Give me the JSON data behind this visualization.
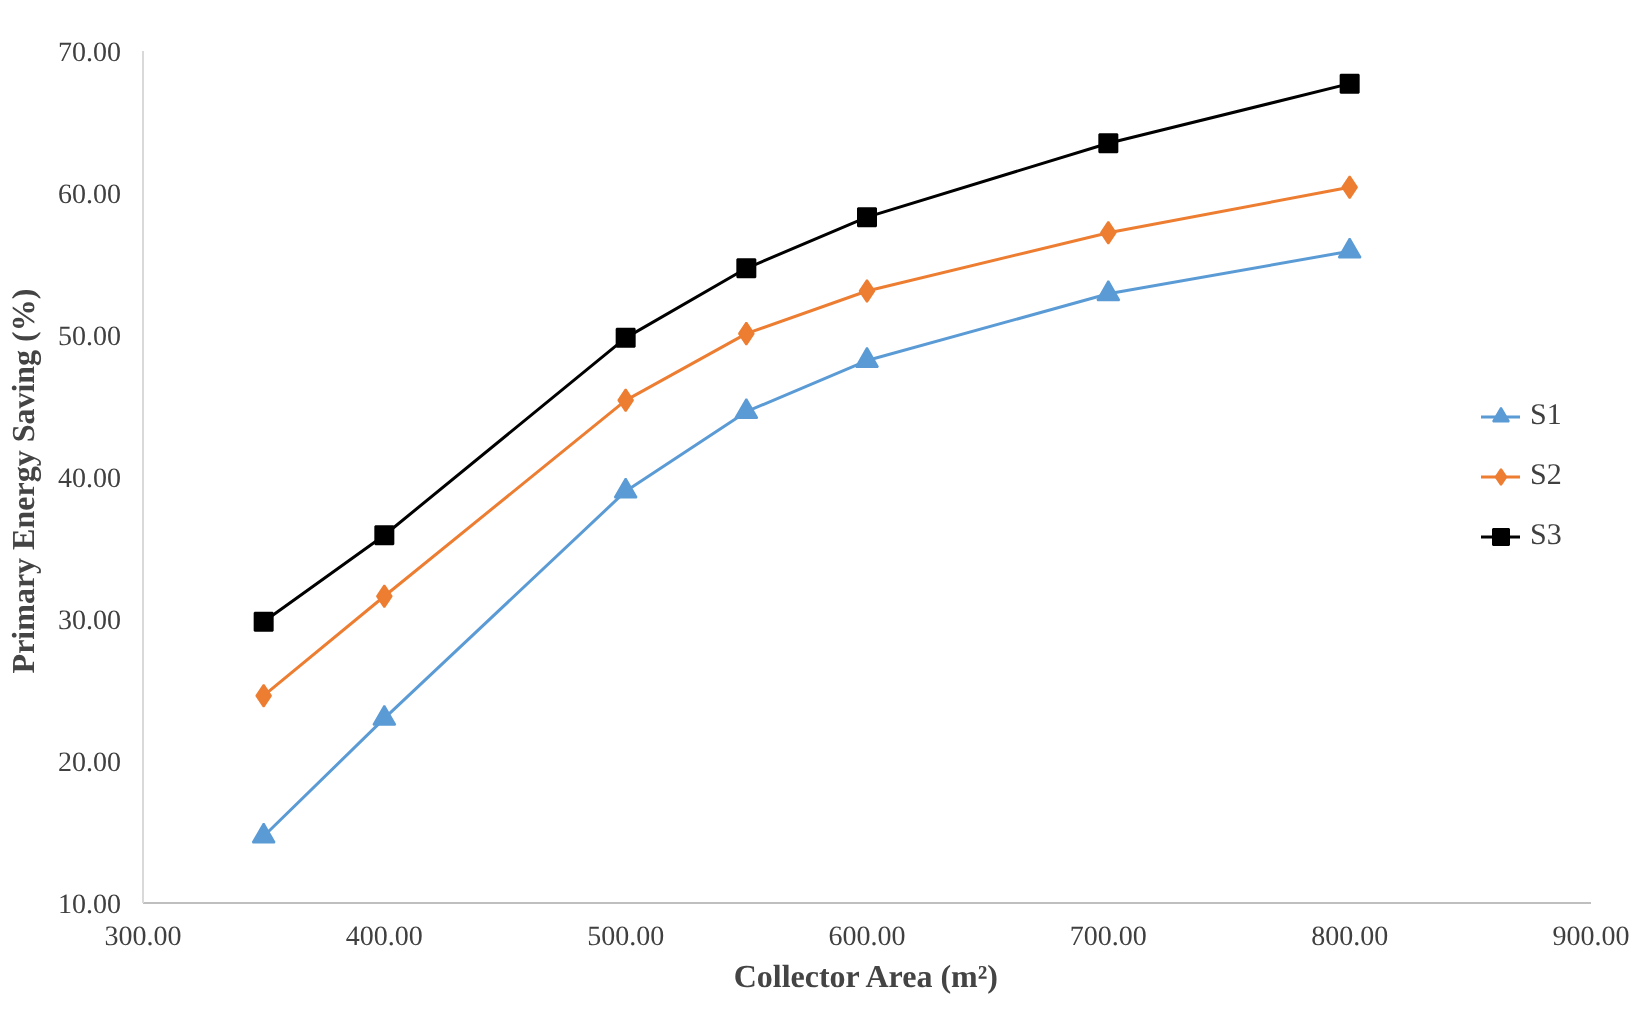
{
  "chart_data": {
    "type": "line",
    "xlabel": "Collector Area (m²)",
    "ylabel": "Primary Energy Saving  (%)",
    "x": [
      350,
      400,
      500,
      550,
      600,
      700,
      800
    ],
    "series": [
      {
        "name": "S1",
        "color": "#5b9bd5",
        "marker": "triangle",
        "values": [
          14.7,
          23.0,
          39.0,
          44.6,
          48.2,
          52.9,
          55.9
        ]
      },
      {
        "name": "S2",
        "color": "#ed7d31",
        "marker": "diamond",
        "values": [
          24.6,
          31.6,
          45.4,
          50.1,
          53.1,
          57.2,
          60.4
        ]
      },
      {
        "name": "S3",
        "color": "#000000",
        "marker": "square",
        "values": [
          29.8,
          35.9,
          49.8,
          54.7,
          58.3,
          63.5,
          67.7
        ]
      }
    ],
    "xlim": [
      300,
      900
    ],
    "ylim": [
      10,
      70
    ],
    "xticks": [
      {
        "value": 300,
        "label": "300.00"
      },
      {
        "value": 400,
        "label": "400.00"
      },
      {
        "value": 500,
        "label": "500.00"
      },
      {
        "value": 600,
        "label": "600.00"
      },
      {
        "value": 700,
        "label": "700.00"
      },
      {
        "value": 800,
        "label": "800.00"
      },
      {
        "value": 900,
        "label": "900.00"
      }
    ],
    "yticks": [
      {
        "value": 10,
        "label": "10.00"
      },
      {
        "value": 20,
        "label": "20.00"
      },
      {
        "value": 30,
        "label": "30.00"
      },
      {
        "value": 40,
        "label": "40.00"
      },
      {
        "value": 50,
        "label": "50.00"
      },
      {
        "value": 60,
        "label": "60.00"
      },
      {
        "value": 70,
        "label": "70.00"
      }
    ],
    "grid": false,
    "legend": "right",
    "line_style": "solid"
  }
}
